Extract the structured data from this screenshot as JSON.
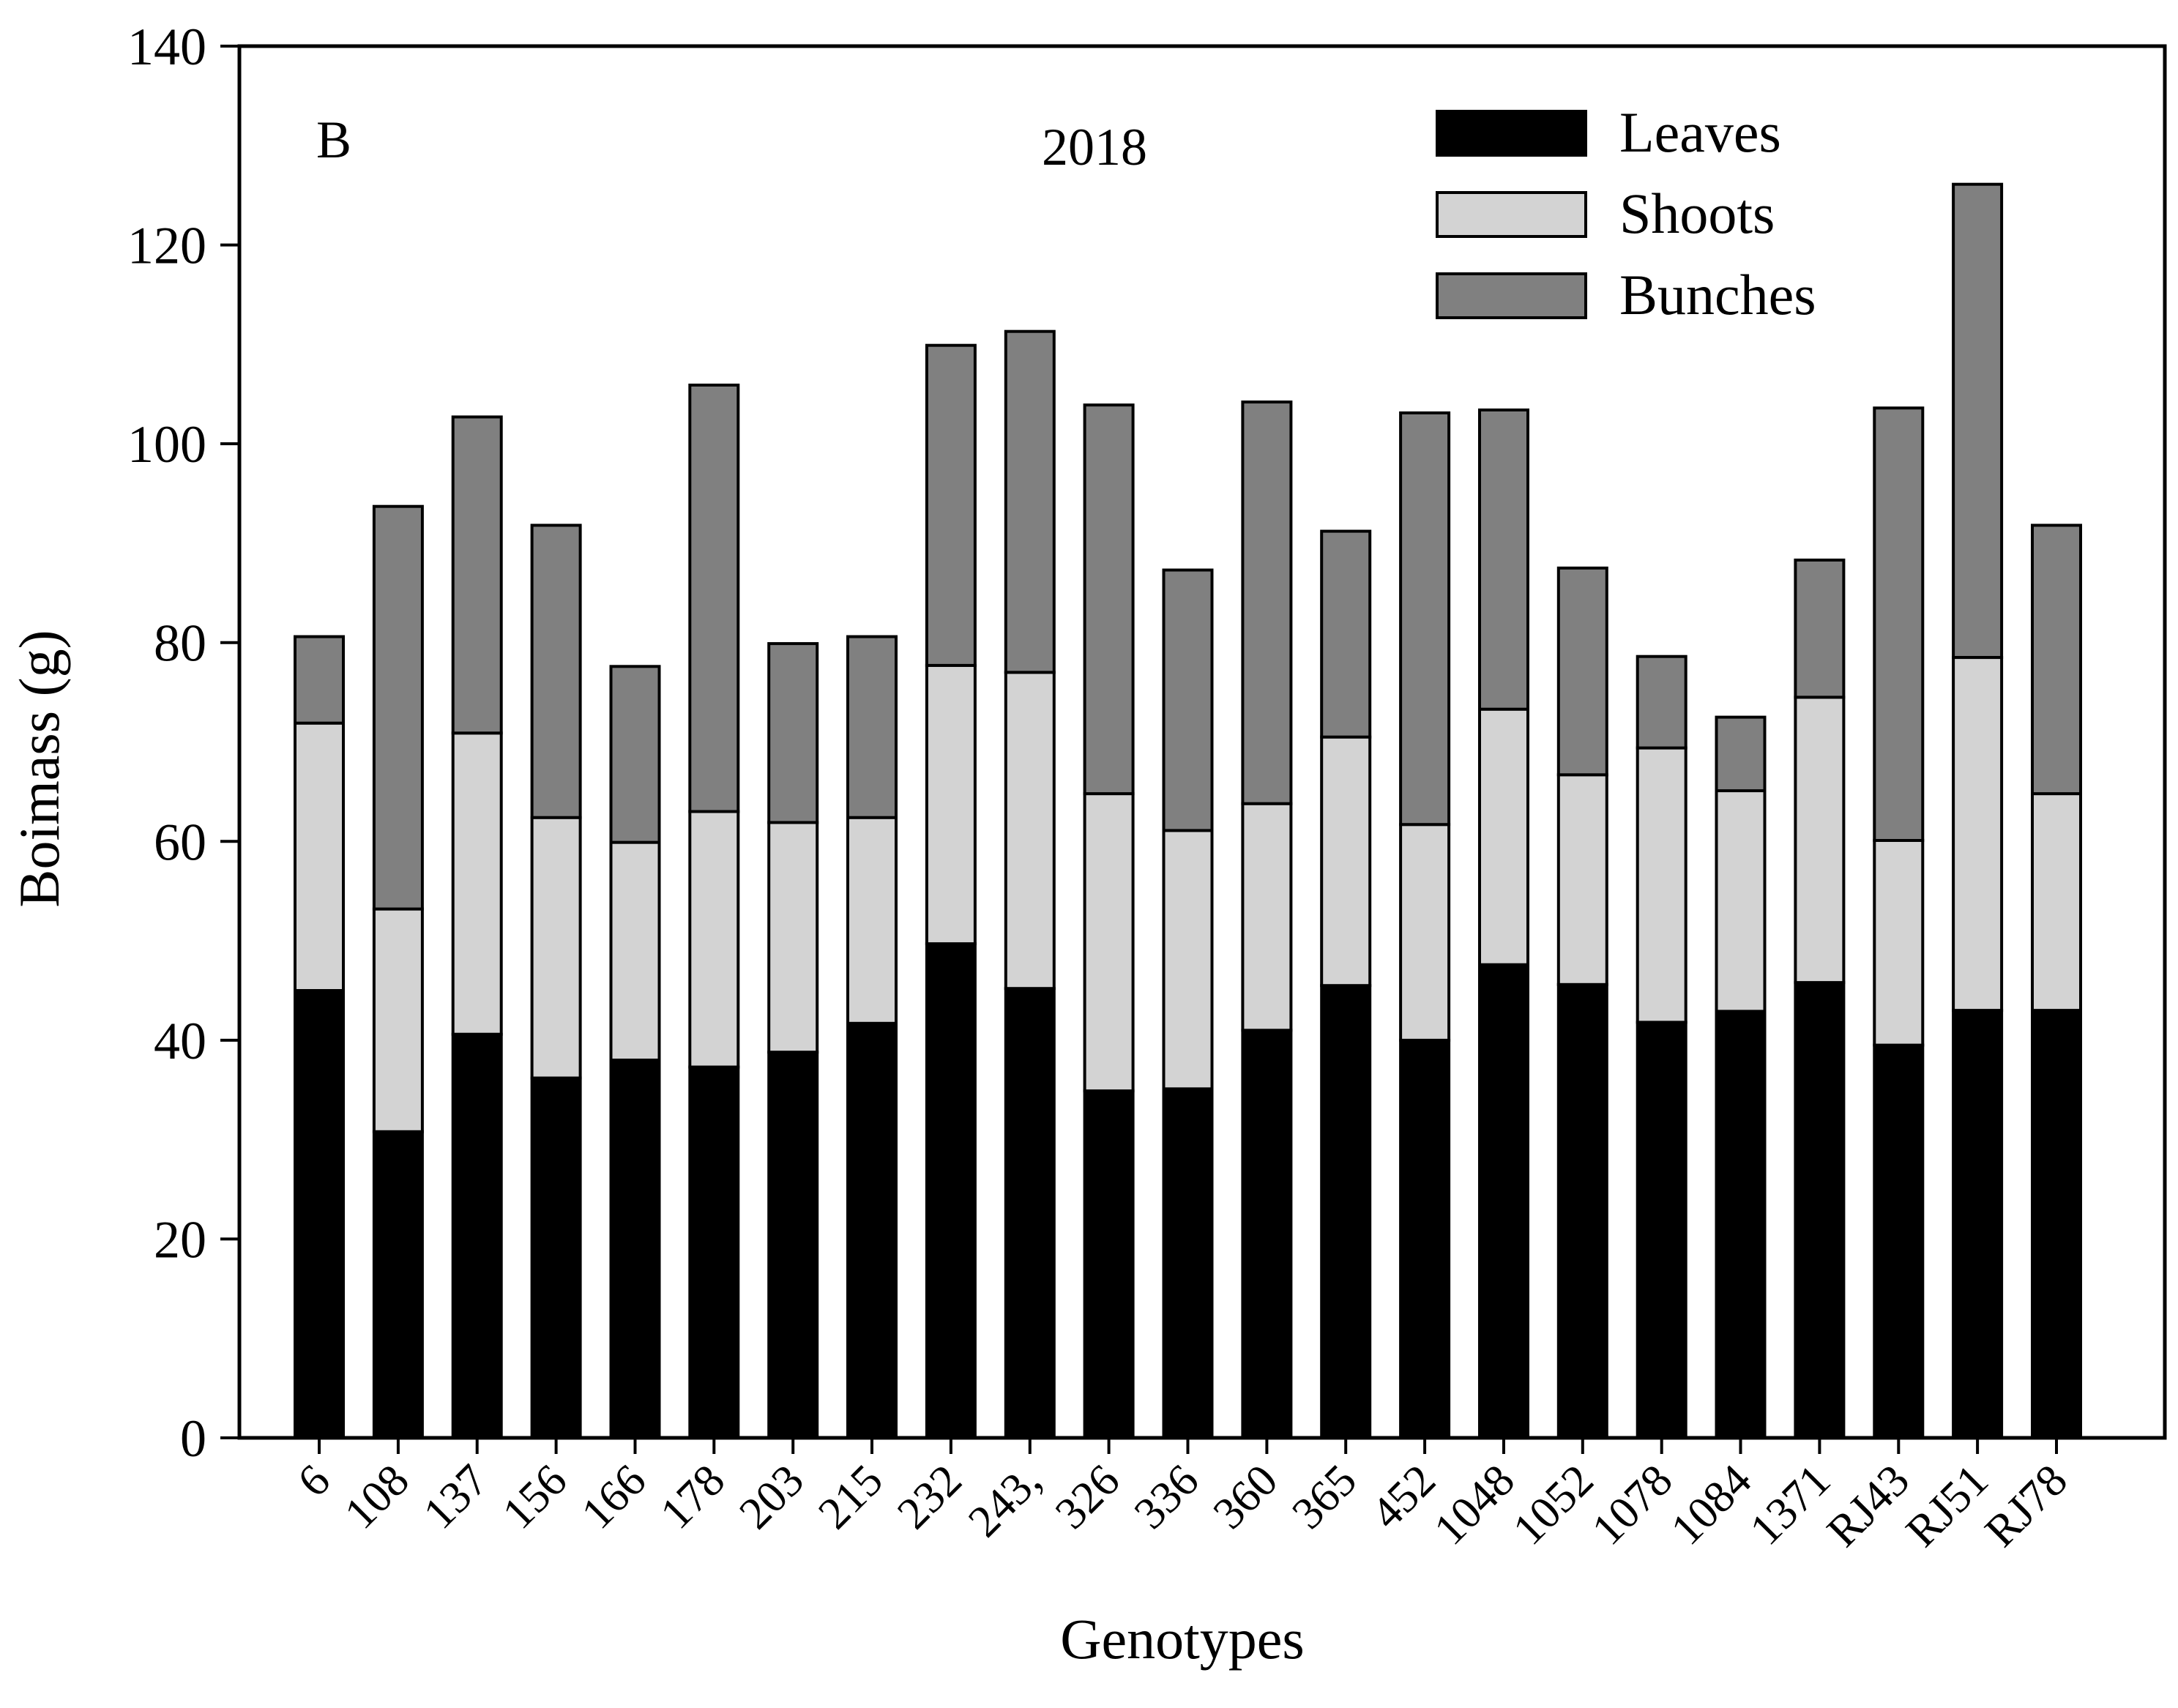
{
  "chart_data": {
    "type": "bar",
    "stacked": true,
    "panel_label": "B",
    "title": "2018",
    "xlabel": "Genotypes",
    "ylabel": "Boimass (g)",
    "ylim": [
      0,
      140
    ],
    "yticks": [
      0,
      20,
      40,
      60,
      80,
      100,
      120,
      140
    ],
    "grid": false,
    "legend_position": "top-right",
    "categories": [
      "6",
      "108",
      "137",
      "156",
      "166",
      "178",
      "203",
      "215",
      "232",
      "243,",
      "326",
      "336",
      "360",
      "365",
      "452",
      "1048",
      "1052",
      "1078",
      "1084",
      "1371",
      "RJ43",
      "RJ51",
      "RJ78"
    ],
    "series": [
      {
        "name": "Leaves",
        "color": "#000000",
        "values": [
          45,
          30.8,
          40.6,
          36.2,
          38,
          37.3,
          38.8,
          41.7,
          49.7,
          45.2,
          34.9,
          35.1,
          41,
          45.5,
          40,
          47.6,
          45.6,
          41.8,
          42.9,
          45.8,
          39.5,
          43,
          43
        ]
      },
      {
        "name": "Shoots",
        "color": "#d3d3d3",
        "values": [
          26.9,
          22.4,
          30.3,
          26.2,
          21.9,
          25.7,
          23.1,
          20.7,
          28,
          31.8,
          29.9,
          26,
          22.8,
          25,
          21.7,
          25.7,
          21.1,
          27.6,
          22.2,
          28.7,
          20.6,
          35.5,
          21.8
        ]
      },
      {
        "name": "Bunches",
        "color": "#808080",
        "values": [
          8.7,
          40.5,
          31.8,
          29.4,
          17.7,
          42.9,
          18,
          18.2,
          32.2,
          34.3,
          39.1,
          26.2,
          40.4,
          20.7,
          41.4,
          30.1,
          20.8,
          9.2,
          7.4,
          13.8,
          43.5,
          47.6,
          27
        ]
      }
    ]
  }
}
